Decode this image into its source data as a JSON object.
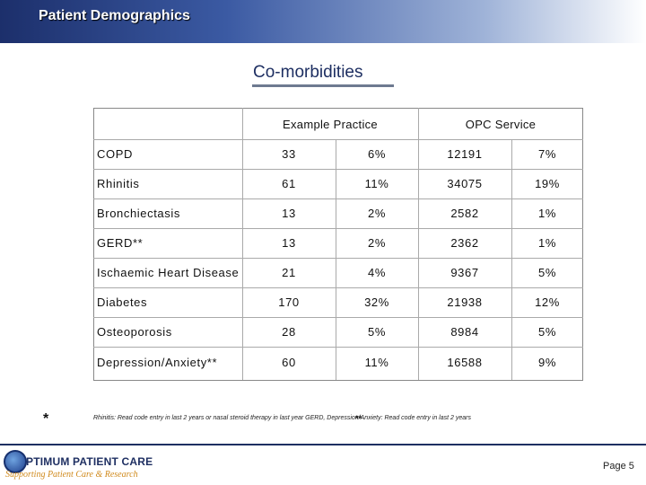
{
  "header": {
    "title": "Patient Demographics"
  },
  "slide": {
    "title": "Co-morbidities"
  },
  "table": {
    "groups": [
      "Example Practice",
      "OPC Service"
    ],
    "rows": [
      {
        "name": "COPD",
        "v1": "33",
        "v2": "6%",
        "v3": "12191",
        "v4": "7%"
      },
      {
        "name": "Rhinitis",
        "v1": "61",
        "v2": "11%",
        "v3": "34075",
        "v4": "19%"
      },
      {
        "name": "Bronchiectasis",
        "v1": "13",
        "v2": "2%",
        "v3": "2582",
        "v4": "1%"
      },
      {
        "name": "GERD**",
        "v1": "13",
        "v2": "2%",
        "v3": "2362",
        "v4": "1%"
      },
      {
        "name": "Ischaemic Heart Disease",
        "v1": "21",
        "v2": "4%",
        "v3": "9367",
        "v4": "5%"
      },
      {
        "name": "Diabetes",
        "v1": "170",
        "v2": "32%",
        "v3": "21938",
        "v4": "12%"
      },
      {
        "name": "Osteoporosis",
        "v1": "28",
        "v2": "5%",
        "v3": "8984",
        "v4": "5%"
      },
      {
        "name": "Depression/Anxiety**",
        "v1": "60",
        "v2": "11%",
        "v3": "16588",
        "v4": "9%"
      }
    ]
  },
  "footnote": {
    "star": "*",
    "text": "Rhinitis: Read code entry in last 2 years or nasal steroid therapy in last year  GERD, Depression/Anxiety: Read code entry in last 2 years",
    "star2": "**"
  },
  "footer": {
    "logo_main": "PTIMUM PATIENT CARE",
    "logo_sub": "Supporting Patient Care & Research",
    "page": "Page 5"
  }
}
